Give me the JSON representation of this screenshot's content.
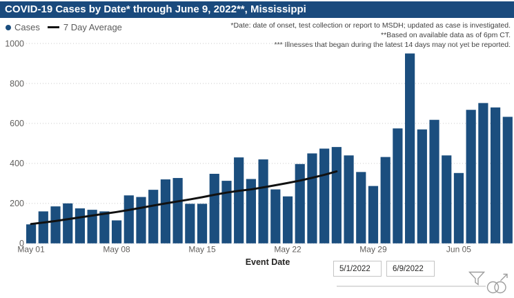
{
  "title_bar": {
    "text": "COVID-19 Cases by Date* through June 9, 2022**, Mississippi"
  },
  "legend": {
    "items": [
      {
        "label": "Cases",
        "marker": "dot",
        "color": "#1b4e7e"
      },
      {
        "label": "7 Day Average",
        "marker": "line",
        "color": "#111111"
      }
    ]
  },
  "notes": [
    "*Date: date of onset, test collection or report to MSDH; updated as case is investigated.",
    "**Based on available data as of 6pm CT.",
    "*** Illnesses that began during the latest 14 days may not yet be reported."
  ],
  "chart_data": {
    "type": "bar",
    "title": "COVID-19 Cases by Date* through June 9, 2022**, Mississippi",
    "xlabel": "Event Date",
    "ylabel": "",
    "ylim": [
      0,
      1000
    ],
    "yticks": [
      0,
      200,
      400,
      600,
      800,
      1000
    ],
    "grid": "horizontal-dotted",
    "legend_position": "top-left",
    "categories": [
      "May 01",
      "May 02",
      "May 03",
      "May 04",
      "May 05",
      "May 06",
      "May 07",
      "May 08",
      "May 09",
      "May 10",
      "May 11",
      "May 12",
      "May 13",
      "May 14",
      "May 15",
      "May 16",
      "May 17",
      "May 18",
      "May 19",
      "May 20",
      "May 21",
      "May 22",
      "May 23",
      "May 24",
      "May 25",
      "May 26",
      "May 27",
      "May 28",
      "May 29",
      "May 30",
      "May 31",
      "Jun 01",
      "Jun 02",
      "Jun 03",
      "Jun 04",
      "Jun 05",
      "Jun 06",
      "Jun 07",
      "Jun 08",
      "Jun 09"
    ],
    "xtick_labels": [
      "May 01",
      "May 08",
      "May 15",
      "May 22",
      "May 29",
      "Jun 05"
    ],
    "series": [
      {
        "name": "Cases",
        "type": "bar",
        "color": "#1b4e7e",
        "values": [
          95,
          160,
          185,
          200,
          175,
          168,
          160,
          115,
          240,
          232,
          268,
          320,
          327,
          198,
          198,
          348,
          313,
          430,
          322,
          420,
          270,
          235,
          397,
          450,
          474,
          482,
          440,
          357,
          287,
          432,
          575,
          950,
          570,
          618,
          440,
          352,
          668,
          702,
          680,
          633
        ]
      },
      {
        "name": "7 Day Average",
        "type": "line",
        "color": "#111111",
        "values": [
          97,
          104,
          112,
          121,
          130,
          139,
          148,
          157,
          167,
          178,
          189,
          200,
          210,
          220,
          231,
          243,
          254,
          263,
          270,
          280,
          291,
          302,
          314,
          328,
          343,
          360,
          null,
          null,
          null,
          null,
          null,
          null,
          null,
          null,
          null,
          null,
          null,
          null,
          null,
          null
        ]
      }
    ]
  },
  "slicer": {
    "start_date": "5/1/2022",
    "end_date": "6/9/2022"
  },
  "icons": {
    "filter": "funnel-filter-icon",
    "interactions": "overlapping-circles-arrow-icon"
  },
  "colors": {
    "title_bar_bg": "#1a4a7d",
    "bar_fill": "#1b4e7e",
    "axis_text": "#605e5c",
    "note_text": "#404040",
    "gridline": "#c9c9c9"
  }
}
